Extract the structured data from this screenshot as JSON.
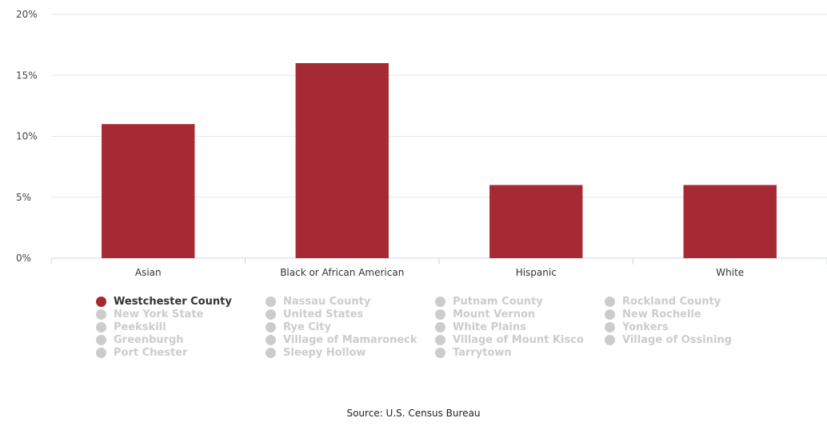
{
  "chart_data": {
    "type": "bar",
    "categories": [
      "Asian",
      "Black or African American",
      "Hispanic",
      "White"
    ],
    "series": [
      {
        "name": "Westchester County",
        "values": [
          11,
          16,
          6,
          6
        ],
        "color": "#a52a33"
      }
    ],
    "ylim": [
      0,
      20
    ],
    "yticks": [
      "0%",
      "5%",
      "10%",
      "15%",
      "20%"
    ],
    "ytick_values": [
      0,
      5,
      10,
      15,
      20
    ],
    "grid": true,
    "legend": {
      "placement": "bottom",
      "items": [
        {
          "label": "Westchester County",
          "active": true
        },
        {
          "label": "New York State",
          "active": false
        },
        {
          "label": "Peekskill",
          "active": false
        },
        {
          "label": "Greenburgh",
          "active": false
        },
        {
          "label": "Port Chester",
          "active": false
        },
        {
          "label": "Nassau County",
          "active": false
        },
        {
          "label": "United States",
          "active": false
        },
        {
          "label": "Rye City",
          "active": false
        },
        {
          "label": "Village of Mamaroneck",
          "active": false
        },
        {
          "label": "Sleepy Hollow",
          "active": false
        },
        {
          "label": "Putnam County",
          "active": false
        },
        {
          "label": "Mount Vernon",
          "active": false
        },
        {
          "label": "White Plains",
          "active": false
        },
        {
          "label": "Village of Mount Kisco",
          "active": false
        },
        {
          "label": "Tarrytown",
          "active": false
        },
        {
          "label": "Rockland County",
          "active": false
        },
        {
          "label": "New Rochelle",
          "active": false
        },
        {
          "label": "Yonkers",
          "active": false
        },
        {
          "label": "Village of Ossining",
          "active": false
        }
      ]
    },
    "source": "Source: U.S. Census Bureau"
  },
  "colors": {
    "bar": "#a52a33",
    "inactive": "#cccccc",
    "grid": "#e6e6e6"
  }
}
